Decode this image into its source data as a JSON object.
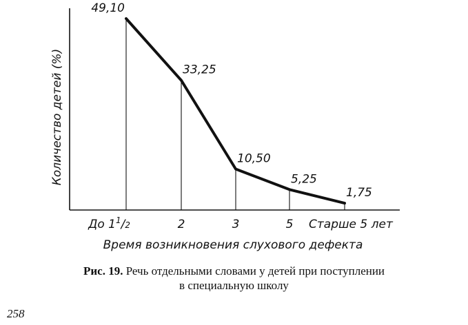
{
  "chart_data": {
    "type": "line",
    "categories": [
      "До 1",
      "2",
      "3",
      "5",
      "Старше 5 лет"
    ],
    "first_category_fraction": "1/2",
    "values": [
      49.1,
      33.25,
      10.5,
      5.25,
      1.75
    ],
    "value_labels": [
      "49,10",
      "33,25",
      "10,50",
      "5,25",
      "1,75"
    ],
    "xlabel": "Время возникновения слухового дефекта",
    "ylabel": "Количество детей (%)",
    "ylim": [
      0,
      50
    ],
    "grid": false,
    "drop_lines": true
  },
  "caption": {
    "prefix": "Рис. 19.",
    "line1": "Речь отдельными словами у детей при поступлении",
    "line2": "в специальную школу"
  },
  "page_number": "258"
}
